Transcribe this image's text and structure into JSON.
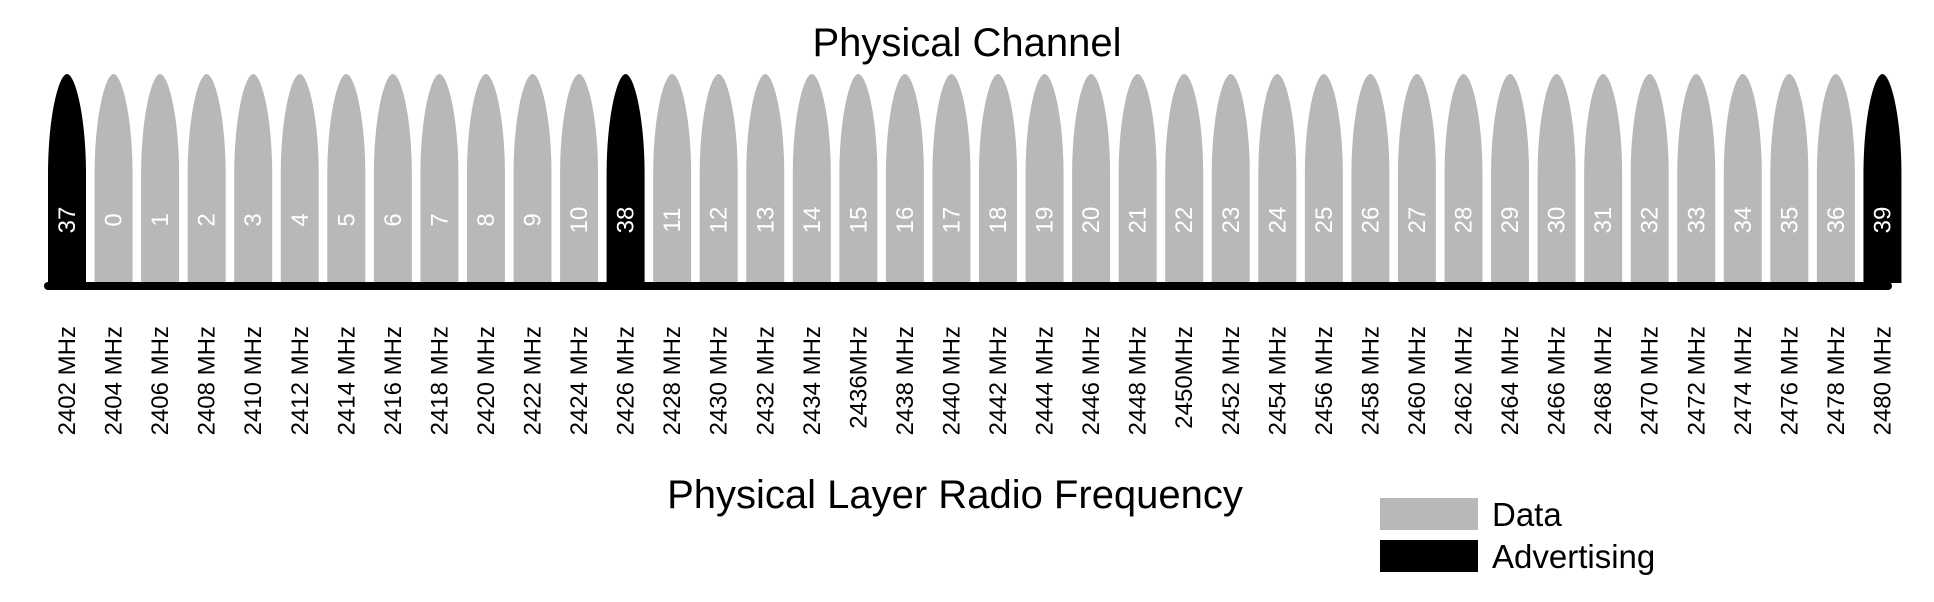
{
  "diagram": {
    "title": "Physical Channel",
    "axis_label": "Physical Layer Radio Frequency",
    "colors": {
      "data": "#b8b8b8",
      "advertising": "#000000",
      "baseline": "#000000"
    },
    "channels": [
      {
        "channel": "37",
        "frequency": "2402 MHz",
        "type": "advertising"
      },
      {
        "channel": "0",
        "frequency": "2404 MHz",
        "type": "data"
      },
      {
        "channel": "1",
        "frequency": "2406 MHz",
        "type": "data"
      },
      {
        "channel": "2",
        "frequency": "2408 MHz",
        "type": "data"
      },
      {
        "channel": "3",
        "frequency": "2410 MHz",
        "type": "data"
      },
      {
        "channel": "4",
        "frequency": "2412 MHz",
        "type": "data"
      },
      {
        "channel": "5",
        "frequency": "2414 MHz",
        "type": "data"
      },
      {
        "channel": "6",
        "frequency": "2416 MHz",
        "type": "data"
      },
      {
        "channel": "7",
        "frequency": "2418 MHz",
        "type": "data"
      },
      {
        "channel": "8",
        "frequency": "2420 MHz",
        "type": "data"
      },
      {
        "channel": "9",
        "frequency": "2422 MHz",
        "type": "data"
      },
      {
        "channel": "10",
        "frequency": "2424 MHz",
        "type": "data"
      },
      {
        "channel": "38",
        "frequency": "2426 MHz",
        "type": "advertising"
      },
      {
        "channel": "11",
        "frequency": "2428 MHz",
        "type": "data"
      },
      {
        "channel": "12",
        "frequency": "2430 MHz",
        "type": "data"
      },
      {
        "channel": "13",
        "frequency": "2432 MHz",
        "type": "data"
      },
      {
        "channel": "14",
        "frequency": "2434 MHz",
        "type": "data"
      },
      {
        "channel": "15",
        "frequency": "2436MHz",
        "type": "data"
      },
      {
        "channel": "16",
        "frequency": "2438 MHz",
        "type": "data"
      },
      {
        "channel": "17",
        "frequency": "2440 MHz",
        "type": "data"
      },
      {
        "channel": "18",
        "frequency": "2442 MHz",
        "type": "data"
      },
      {
        "channel": "19",
        "frequency": "2444 MHz",
        "type": "data"
      },
      {
        "channel": "20",
        "frequency": "2446 MHz",
        "type": "data"
      },
      {
        "channel": "21",
        "frequency": "2448 MHz",
        "type": "data"
      },
      {
        "channel": "22",
        "frequency": "2450MHz",
        "type": "data"
      },
      {
        "channel": "23",
        "frequency": "2452 MHz",
        "type": "data"
      },
      {
        "channel": "24",
        "frequency": "2454 MHz",
        "type": "data"
      },
      {
        "channel": "25",
        "frequency": "2456 MHz",
        "type": "data"
      },
      {
        "channel": "26",
        "frequency": "2458 MHz",
        "type": "data"
      },
      {
        "channel": "27",
        "frequency": "2460 MHz",
        "type": "data"
      },
      {
        "channel": "28",
        "frequency": "2462 MHz",
        "type": "data"
      },
      {
        "channel": "29",
        "frequency": "2464 MHz",
        "type": "data"
      },
      {
        "channel": "30",
        "frequency": "2466 MHz",
        "type": "data"
      },
      {
        "channel": "31",
        "frequency": "2468 MHz",
        "type": "data"
      },
      {
        "channel": "32",
        "frequency": "2470 MHz",
        "type": "data"
      },
      {
        "channel": "33",
        "frequency": "2472 MHz",
        "type": "data"
      },
      {
        "channel": "34",
        "frequency": "2474 MHz",
        "type": "data"
      },
      {
        "channel": "35",
        "frequency": "2476 MHz",
        "type": "data"
      },
      {
        "channel": "36",
        "frequency": "2478 MHz",
        "type": "data"
      },
      {
        "channel": "39",
        "frequency": "2480 MHz",
        "type": "advertising"
      }
    ],
    "legend": [
      {
        "label": "Data",
        "type": "data"
      },
      {
        "label": "Advertising",
        "type": "advertising"
      }
    ]
  }
}
